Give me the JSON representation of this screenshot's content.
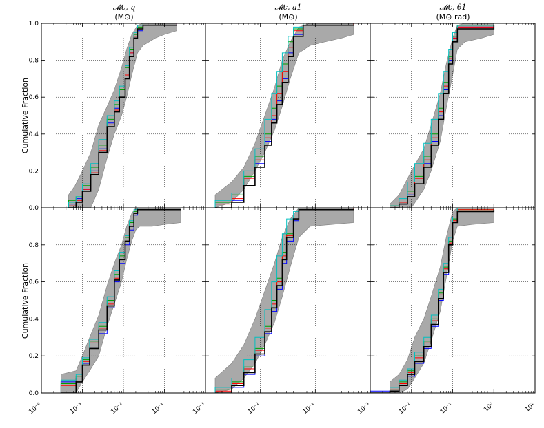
{
  "figure": {
    "ylabel": "Cumulative Fraction",
    "series_colors": [
      "#0000ff",
      "#00a000",
      "#ff0000",
      "#00c0c0",
      "#000000"
    ],
    "band_color": "#a9a9a9"
  },
  "columns": [
    {
      "title_math": "𝓜c, q",
      "title_units": "(M⊙)"
    },
    {
      "title_math": "𝓜c, a1",
      "title_units": "(M⊙)"
    },
    {
      "title_math": "𝓜c, θ1",
      "title_units": "(M⊙ rad)"
    }
  ],
  "y_ticks": [
    "0.0",
    "0.2",
    "0.4",
    "0.6",
    "0.8",
    "1.0"
  ],
  "x_ticks": [
    [
      "10⁻⁴",
      "10⁻³",
      "10⁻²",
      "10⁻¹"
    ],
    [
      "10⁻³",
      "10⁻²",
      "10⁻¹"
    ],
    [
      "10⁻³",
      "10⁻²",
      "10⁻¹",
      "10⁰",
      "10¹"
    ]
  ],
  "chart_data": [
    {
      "type": "line",
      "panel": "top-left",
      "xscale": "log",
      "xlim": [
        0.0001,
        1
      ],
      "ylim": [
        0,
        1
      ],
      "grid": true,
      "title": "𝓜c, q (M⊙)",
      "ylabel": "Cumulative Fraction",
      "band": {
        "x": [
          0.00046,
          0.00066,
          0.001,
          0.0016,
          0.0025,
          0.004,
          0.006,
          0.009,
          0.012,
          0.016,
          0.022,
          0.03,
          0.06,
          0.1,
          0.2
        ],
        "lower": [
          0.0,
          0.0,
          0.0,
          0.0,
          0.1,
          0.27,
          0.4,
          0.5,
          0.6,
          0.72,
          0.84,
          0.88,
          0.92,
          0.94,
          0.96
        ],
        "upper": [
          0.07,
          0.12,
          0.2,
          0.3,
          0.45,
          0.55,
          0.64,
          0.76,
          0.86,
          0.94,
          0.99,
          1.0,
          1.0,
          1.0,
          1.0
        ]
      },
      "series_x": [
        0.00046,
        0.0007,
        0.001,
        0.0016,
        0.0025,
        0.004,
        0.006,
        0.008,
        0.011,
        0.014,
        0.018,
        0.022,
        0.03,
        0.2
      ],
      "series": [
        {
          "name": "",
          "values": [
            0.02,
            0.05,
            0.1,
            0.2,
            0.32,
            0.46,
            0.54,
            0.6,
            0.72,
            0.84,
            0.92,
            0.96,
            0.99,
            1.0
          ]
        },
        {
          "name": "",
          "values": [
            0.04,
            0.06,
            0.12,
            0.22,
            0.34,
            0.48,
            0.56,
            0.64,
            0.76,
            0.86,
            0.94,
            0.98,
            1.0,
            1.0
          ]
        },
        {
          "name": "",
          "values": [
            0.01,
            0.04,
            0.1,
            0.19,
            0.31,
            0.45,
            0.53,
            0.6,
            0.72,
            0.84,
            0.93,
            0.97,
            0.99,
            1.0
          ]
        },
        {
          "name": "",
          "values": [
            0.03,
            0.06,
            0.13,
            0.24,
            0.37,
            0.5,
            0.58,
            0.66,
            0.77,
            0.87,
            0.95,
            0.99,
            1.0,
            1.0
          ]
        },
        {
          "name": "",
          "values": [
            0.0,
            0.03,
            0.09,
            0.18,
            0.3,
            0.44,
            0.52,
            0.6,
            0.7,
            0.82,
            0.92,
            0.97,
            0.99,
            0.99
          ]
        }
      ]
    },
    {
      "type": "line",
      "panel": "top-middle",
      "xscale": "log",
      "xlim": [
        0.001,
        1
      ],
      "ylim": [
        0,
        1
      ],
      "grid": true,
      "title": "𝓜c, a1 (M⊙)",
      "ylabel": "",
      "band": {
        "x": [
          0.0015,
          0.003,
          0.005,
          0.008,
          0.012,
          0.018,
          0.025,
          0.035,
          0.05,
          0.08,
          0.15,
          0.3,
          0.5
        ],
        "lower": [
          0.0,
          0.03,
          0.1,
          0.2,
          0.3,
          0.42,
          0.55,
          0.7,
          0.84,
          0.88,
          0.9,
          0.92,
          0.94
        ],
        "upper": [
          0.07,
          0.14,
          0.22,
          0.35,
          0.5,
          0.65,
          0.8,
          0.9,
          0.98,
          1.0,
          1.0,
          1.0,
          1.0
        ]
      },
      "series_x": [
        0.0015,
        0.003,
        0.005,
        0.008,
        0.012,
        0.016,
        0.02,
        0.025,
        0.032,
        0.04,
        0.06,
        0.5
      ],
      "series": [
        {
          "name": "",
          "values": [
            0.0,
            0.04,
            0.14,
            0.24,
            0.36,
            0.48,
            0.58,
            0.7,
            0.84,
            0.94,
            0.99,
            1.0
          ]
        },
        {
          "name": "",
          "values": [
            0.03,
            0.07,
            0.17,
            0.28,
            0.4,
            0.54,
            0.66,
            0.78,
            0.9,
            0.97,
            1.0,
            1.0
          ]
        },
        {
          "name": "",
          "values": [
            0.02,
            0.05,
            0.16,
            0.26,
            0.38,
            0.5,
            0.62,
            0.74,
            0.87,
            0.96,
            0.99,
            1.0
          ]
        },
        {
          "name": "",
          "values": [
            0.04,
            0.08,
            0.2,
            0.32,
            0.48,
            0.62,
            0.74,
            0.84,
            0.93,
            0.98,
            1.0,
            1.0
          ]
        },
        {
          "name": "",
          "values": [
            0.0,
            0.03,
            0.12,
            0.22,
            0.34,
            0.46,
            0.56,
            0.68,
            0.82,
            0.93,
            0.99,
            0.99
          ]
        }
      ]
    },
    {
      "type": "line",
      "panel": "top-right",
      "xscale": "log",
      "xlim": [
        0.001,
        10
      ],
      "ylim": [
        0,
        1
      ],
      "grid": true,
      "title": "𝓜c, θ1 (M⊙ rad)",
      "ylabel": "",
      "band": {
        "x": [
          0.003,
          0.005,
          0.01,
          0.02,
          0.03,
          0.05,
          0.07,
          0.1,
          0.13,
          0.2,
          0.5,
          1.0
        ],
        "lower": [
          0.0,
          0.0,
          0.0,
          0.1,
          0.2,
          0.36,
          0.54,
          0.72,
          0.86,
          0.9,
          0.92,
          0.94
        ],
        "upper": [
          0.02,
          0.07,
          0.2,
          0.32,
          0.45,
          0.62,
          0.78,
          0.92,
          0.99,
          1.0,
          1.0,
          1.0
        ]
      },
      "series_x": [
        0.003,
        0.005,
        0.008,
        0.012,
        0.02,
        0.03,
        0.045,
        0.06,
        0.08,
        0.1,
        0.13,
        1.0
      ],
      "series": [
        {
          "name": "",
          "values": [
            0.0,
            0.02,
            0.07,
            0.14,
            0.24,
            0.36,
            0.5,
            0.64,
            0.8,
            0.92,
            0.98,
            1.0
          ]
        },
        {
          "name": "",
          "values": [
            0.01,
            0.03,
            0.09,
            0.17,
            0.28,
            0.4,
            0.54,
            0.68,
            0.82,
            0.93,
            0.99,
            1.0
          ]
        },
        {
          "name": "",
          "values": [
            0.0,
            0.03,
            0.08,
            0.16,
            0.26,
            0.38,
            0.52,
            0.66,
            0.81,
            0.92,
            0.98,
            1.0
          ]
        },
        {
          "name": "",
          "values": [
            0.01,
            0.05,
            0.14,
            0.24,
            0.35,
            0.48,
            0.62,
            0.74,
            0.86,
            0.95,
            0.99,
            1.0
          ]
        },
        {
          "name": "",
          "values": [
            0.0,
            0.02,
            0.06,
            0.13,
            0.22,
            0.34,
            0.48,
            0.62,
            0.78,
            0.9,
            0.97,
            0.99
          ]
        }
      ]
    },
    {
      "type": "line",
      "panel": "bottom-left",
      "xscale": "log",
      "xlim": [
        0.0001,
        1
      ],
      "ylim": [
        0,
        1
      ],
      "grid": true,
      "title": "",
      "ylabel": "Cumulative Fraction",
      "band": {
        "x": [
          0.0003,
          0.0007,
          0.001,
          0.0015,
          0.0025,
          0.004,
          0.006,
          0.009,
          0.012,
          0.016,
          0.02,
          0.025,
          0.05,
          0.1,
          0.25
        ],
        "lower": [
          0.0,
          0.0,
          0.06,
          0.12,
          0.2,
          0.36,
          0.48,
          0.6,
          0.72,
          0.82,
          0.88,
          0.9,
          0.9,
          0.91,
          0.92
        ],
        "upper": [
          0.1,
          0.12,
          0.2,
          0.3,
          0.42,
          0.58,
          0.7,
          0.8,
          0.9,
          0.97,
          1.0,
          1.0,
          1.0,
          1.0,
          1.0
        ]
      },
      "series_x": [
        0.0003,
        0.0007,
        0.001,
        0.0015,
        0.0025,
        0.004,
        0.006,
        0.008,
        0.011,
        0.014,
        0.018,
        0.022,
        0.25
      ],
      "series": [
        {
          "name": "",
          "values": [
            0.06,
            0.08,
            0.16,
            0.24,
            0.32,
            0.46,
            0.6,
            0.7,
            0.8,
            0.88,
            0.96,
            1.0,
            1.0
          ]
        },
        {
          "name": "",
          "values": [
            0.05,
            0.09,
            0.18,
            0.28,
            0.36,
            0.5,
            0.64,
            0.74,
            0.84,
            0.92,
            0.98,
            1.0,
            1.0
          ]
        },
        {
          "name": "",
          "values": [
            0.04,
            0.08,
            0.17,
            0.27,
            0.35,
            0.48,
            0.62,
            0.72,
            0.82,
            0.9,
            0.97,
            1.0,
            1.0
          ]
        },
        {
          "name": "",
          "values": [
            0.07,
            0.1,
            0.19,
            0.29,
            0.38,
            0.52,
            0.66,
            0.76,
            0.85,
            0.93,
            0.99,
            1.0,
            1.0
          ]
        },
        {
          "name": "",
          "values": [
            0.0,
            0.06,
            0.15,
            0.24,
            0.34,
            0.47,
            0.61,
            0.72,
            0.82,
            0.9,
            0.97,
            0.99,
            0.99
          ]
        }
      ]
    },
    {
      "type": "line",
      "panel": "bottom-middle",
      "xscale": "log",
      "xlim": [
        0.001,
        1
      ],
      "ylim": [
        0,
        1
      ],
      "grid": true,
      "title": "",
      "ylabel": "",
      "band": {
        "x": [
          0.0015,
          0.003,
          0.005,
          0.008,
          0.012,
          0.018,
          0.025,
          0.035,
          0.05,
          0.08,
          0.2,
          0.5
        ],
        "lower": [
          0.0,
          0.02,
          0.08,
          0.16,
          0.26,
          0.38,
          0.52,
          0.68,
          0.84,
          0.9,
          0.91,
          0.92
        ],
        "upper": [
          0.08,
          0.16,
          0.26,
          0.4,
          0.55,
          0.7,
          0.84,
          0.94,
          1.0,
          1.0,
          1.0,
          1.0
        ]
      },
      "series_x": [
        0.0015,
        0.003,
        0.005,
        0.008,
        0.012,
        0.016,
        0.02,
        0.025,
        0.03,
        0.04,
        0.05,
        0.5
      ],
      "series": [
        {
          "name": "",
          "values": [
            0.0,
            0.03,
            0.1,
            0.2,
            0.32,
            0.44,
            0.56,
            0.7,
            0.82,
            0.93,
            0.99,
            1.0
          ]
        },
        {
          "name": "",
          "values": [
            0.02,
            0.06,
            0.14,
            0.24,
            0.36,
            0.5,
            0.62,
            0.76,
            0.86,
            0.95,
            1.0,
            1.0
          ]
        },
        {
          "name": "",
          "values": [
            0.01,
            0.05,
            0.13,
            0.23,
            0.35,
            0.48,
            0.6,
            0.74,
            0.85,
            0.94,
            0.99,
            1.0
          ]
        },
        {
          "name": "",
          "values": [
            0.03,
            0.08,
            0.18,
            0.3,
            0.45,
            0.6,
            0.74,
            0.86,
            0.94,
            0.98,
            1.0,
            1.0
          ]
        },
        {
          "name": "",
          "values": [
            0.0,
            0.04,
            0.11,
            0.21,
            0.33,
            0.46,
            0.58,
            0.72,
            0.84,
            0.94,
            0.99,
            0.99
          ]
        }
      ]
    },
    {
      "type": "line",
      "panel": "bottom-right",
      "xscale": "log",
      "xlim": [
        0.001,
        10
      ],
      "ylim": [
        0,
        1
      ],
      "grid": true,
      "title": "",
      "ylabel": "",
      "band": {
        "x": [
          0.003,
          0.005,
          0.008,
          0.012,
          0.02,
          0.03,
          0.05,
          0.07,
          0.1,
          0.13,
          0.3,
          1.0
        ],
        "lower": [
          0.0,
          0.0,
          0.02,
          0.08,
          0.16,
          0.28,
          0.44,
          0.62,
          0.82,
          0.9,
          0.91,
          0.92
        ],
        "upper": [
          0.06,
          0.1,
          0.18,
          0.3,
          0.4,
          0.52,
          0.68,
          0.84,
          0.98,
          1.0,
          1.0,
          1.0
        ]
      },
      "series_x": [
        0.001,
        0.003,
        0.005,
        0.008,
        0.012,
        0.02,
        0.03,
        0.045,
        0.06,
        0.08,
        0.1,
        0.13,
        1.0
      ],
      "series": [
        {
          "name": "",
          "values": [
            0.01,
            0.01,
            0.04,
            0.09,
            0.16,
            0.24,
            0.36,
            0.5,
            0.64,
            0.8,
            0.92,
            0.98,
            1.0
          ]
        },
        {
          "name": "",
          "values": [
            0.0,
            0.02,
            0.06,
            0.12,
            0.2,
            0.28,
            0.4,
            0.54,
            0.68,
            0.82,
            0.94,
            0.99,
            1.0
          ]
        },
        {
          "name": "",
          "values": [
            0.0,
            0.02,
            0.05,
            0.11,
            0.19,
            0.27,
            0.39,
            0.53,
            0.67,
            0.81,
            0.93,
            0.99,
            1.0
          ]
        },
        {
          "name": "",
          "values": [
            0.0,
            0.03,
            0.07,
            0.13,
            0.22,
            0.3,
            0.42,
            0.56,
            0.7,
            0.84,
            0.95,
            1.0,
            1.0
          ]
        },
        {
          "name": "",
          "values": [
            0.0,
            0.01,
            0.04,
            0.1,
            0.17,
            0.25,
            0.37,
            0.51,
            0.65,
            0.8,
            0.92,
            0.98,
            0.99
          ]
        }
      ]
    }
  ]
}
